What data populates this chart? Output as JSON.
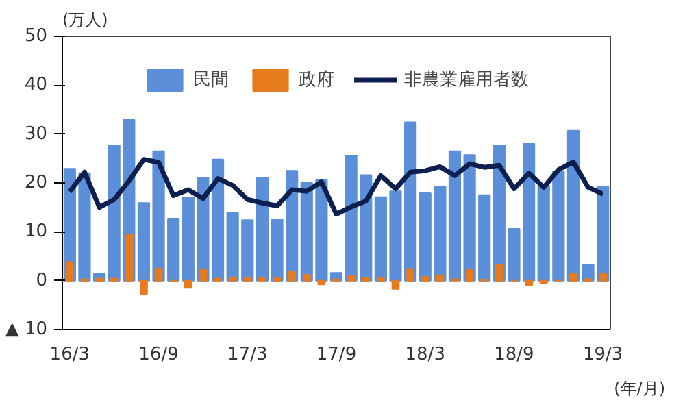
{
  "chart_data": {
    "type": "bar",
    "ylabel": "(万人)",
    "xlabel": "(年/月)",
    "categories": [
      "16/3",
      null,
      null,
      null,
      null,
      null,
      "16/9",
      null,
      null,
      null,
      null,
      null,
      "17/3",
      null,
      null,
      null,
      null,
      null,
      "17/9",
      null,
      null,
      null,
      null,
      null,
      "18/3",
      null,
      null,
      null,
      null,
      null,
      "18/9",
      null,
      null,
      null,
      null,
      null,
      "19/3"
    ],
    "series": [
      {
        "name": "民間",
        "color": "#5b8fd9",
        "values": [
          22.9,
          22,
          1.4,
          27.7,
          32.9,
          15.9,
          26.5,
          12.7,
          17,
          21.1,
          24.8,
          13.9,
          12.4,
          21.1,
          12.5,
          22.5,
          20,
          20.6,
          1.6,
          25.6,
          21.6,
          17.1,
          18.3,
          32.4,
          17.9,
          19.2,
          26.5,
          25.7,
          17.5,
          27.7,
          10.6,
          28,
          19.5,
          22.4,
          30.7,
          3.2,
          19.2
        ]
      },
      {
        "name": "政府",
        "color": "#e87a1e",
        "values": [
          3.8,
          0.3,
          0.4,
          0.4,
          9.5,
          -2.7,
          2.5,
          0,
          -1.5,
          2.3,
          0.4,
          0.7,
          0.6,
          0.6,
          0.5,
          1.9,
          1.2,
          -0.8,
          0.3,
          1,
          0.6,
          0.5,
          -1.7,
          2.4,
          0.8,
          1.1,
          0.3,
          2.3,
          0.2,
          3.3,
          0,
          -1,
          -0.6,
          0,
          1.4,
          0.3,
          1.4
        ]
      },
      {
        "name": "非農業雇用者数",
        "type": "line",
        "color": "#0d1f4f",
        "values": [
          18.2,
          22.2,
          15,
          16.6,
          20.4,
          24.8,
          24.2,
          17.4,
          18.6,
          16.8,
          20.9,
          19.5,
          16.6,
          15.9,
          15.3,
          18.6,
          18.3,
          20.2,
          13.6,
          15.1,
          16.3,
          21.5,
          18.8,
          22.2,
          22.5,
          23.3,
          21.5,
          23.9,
          23.2,
          23.6,
          18.8,
          22,
          19.1,
          22.7,
          24.3,
          19.1,
          17.7
        ]
      }
    ],
    "ylim": [
      -10,
      50
    ],
    "yticks": [
      {
        "value": -10,
        "label": "▲ 10"
      },
      0,
      10,
      20,
      30,
      40,
      50
    ],
    "grid": false,
    "legend": "top",
    "line_style": "solid",
    "marker": "none"
  }
}
